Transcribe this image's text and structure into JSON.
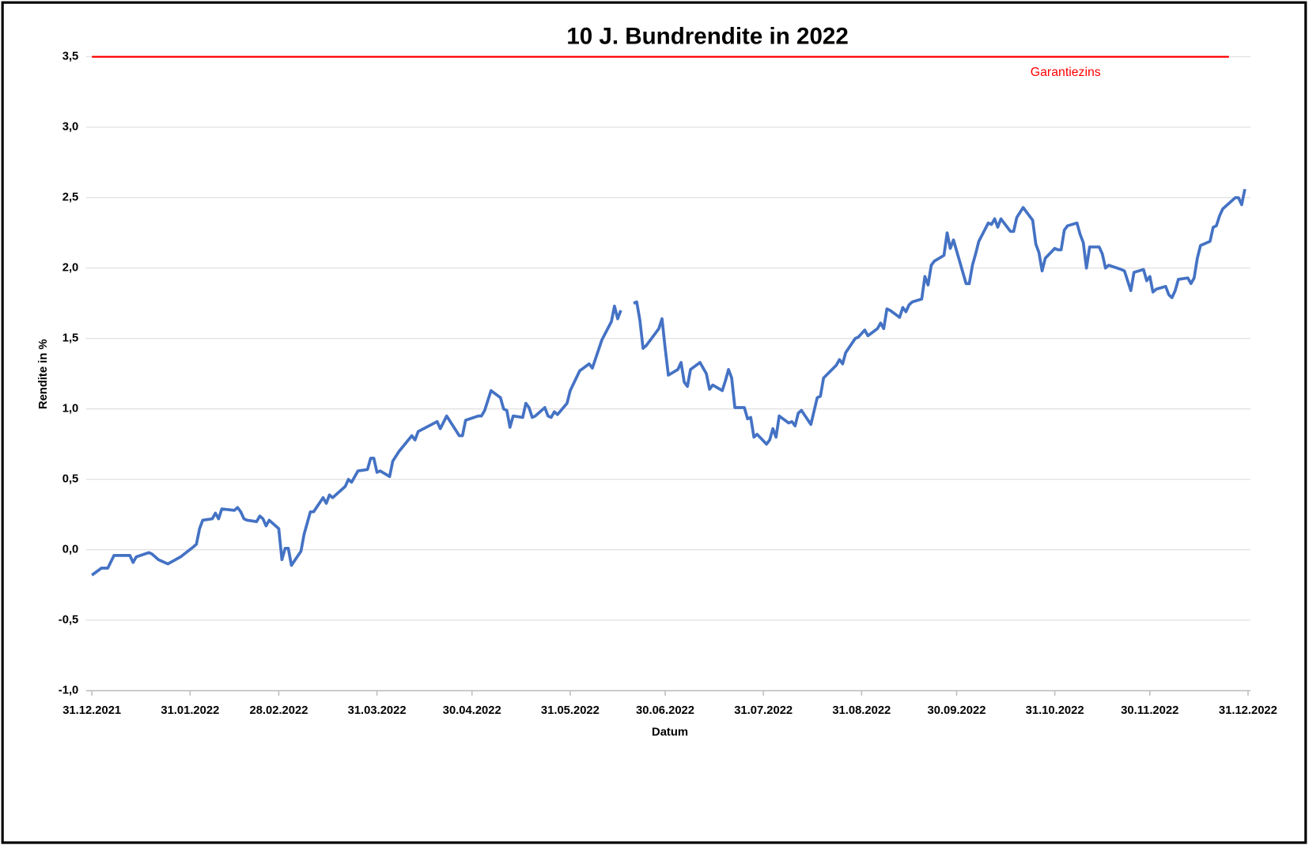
{
  "chart_data": {
    "type": "line",
    "title": "10 J. Bundrendite in 2022",
    "xlabel": "Datum",
    "ylabel": "Rendite  in %",
    "xlim": [
      "31.12.2021",
      "31.12.2022"
    ],
    "xticks": [
      "31.12.2021",
      "31.01.2022",
      "28.02.2022",
      "31.03.2022",
      "30.04.2022",
      "31.05.2022",
      "30.06.2022",
      "31.07.2022",
      "31.08.2022",
      "30.09.2022",
      "31.10.2022",
      "30.11.2022",
      "31.12.2022"
    ],
    "ylim": [
      -1.0,
      3.5
    ],
    "yticks": [
      {
        "value": -1.0,
        "label": "-1,0"
      },
      {
        "value": -0.5,
        "label": "-0,5"
      },
      {
        "value": 0,
        "label": "0,0"
      },
      {
        "value": 0.5,
        "label": "0,5"
      },
      {
        "value": 1.0,
        "label": "1,0"
      },
      {
        "value": 1.5,
        "label": "1,5"
      },
      {
        "value": 2.0,
        "label": "2,0"
      },
      {
        "value": 2.5,
        "label": "2,5"
      },
      {
        "value": 3.0,
        "label": "3,0"
      },
      {
        "value": 3.5,
        "label": "3,5"
      }
    ],
    "grid": true,
    "series": [
      {
        "color": "#4472c4",
        "x": [
          "31.12.2021",
          "03.01.2022",
          "05.01.2022",
          "07.01.2022",
          "12.01.2022",
          "13.01.2022",
          "14.01.2022",
          "18.01.2022",
          "19.01.2022",
          "21.01.2022",
          "24.01.2022",
          "28.01.2022",
          "01.02.2022",
          "02.02.2022",
          "03.02.2022",
          "04.02.2022",
          "07.02.2022",
          "08.02.2022",
          "09.02.2022",
          "10.02.2022",
          "14.02.2022",
          "15.02.2022",
          "16.02.2022",
          "17.02.2022",
          "18.02.2022",
          "21.02.2022",
          "22.02.2022",
          "23.02.2022",
          "24.02.2022",
          "25.02.2022",
          "28.02.2022",
          "01.03.2022",
          "02.03.2022",
          "03.03.2022",
          "04.03.2022",
          "07.03.2022",
          "08.03.2022",
          "10.03.2022",
          "11.03.2022",
          "14.03.2022",
          "15.03.2022",
          "16.03.2022",
          "17.03.2022",
          "21.03.2022",
          "22.03.2022",
          "23.03.2022",
          "25.03.2022",
          "28.03.2022",
          "29.03.2022",
          "30.03.2022",
          "31.03.2022",
          "01.04.2022",
          "04.04.2022",
          "05.04.2022",
          "07.04.2022",
          "11.04.2022",
          "12.04.2022",
          "13.04.2022",
          "19.04.2022",
          "20.04.2022",
          "22.04.2022",
          "26.04.2022",
          "27.04.2022",
          "28.04.2022",
          "02.05.2022",
          "03.05.2022",
          "04.05.2022",
          "06.05.2022",
          "09.05.2022",
          "10.05.2022",
          "11.05.2022",
          "12.05.2022",
          "13.05.2022",
          "16.05.2022",
          "17.05.2022",
          "18.05.2022",
          "19.05.2022",
          "20.05.2022",
          "23.05.2022",
          "24.05.2022",
          "25.05.2022",
          "26.05.2022",
          "27.05.2022",
          "30.05.2022",
          "31.05.2022",
          "03.06.2022",
          "06.06.2022",
          "07.06.2022",
          "10.06.2022",
          "13.06.2022",
          "14.06.2022",
          "15.06.2022",
          "16.06.2022",
          "17.06.2022",
          "20.06.2022",
          "21.06.2022",
          "22.06.2022",
          "23.06.2022",
          "24.06.2022",
          "28.06.2022",
          "29.06.2022",
          "30.06.2022",
          "01.07.2022",
          "04.07.2022",
          "05.07.2022",
          "06.07.2022",
          "07.07.2022",
          "08.07.2022",
          "11.07.2022",
          "12.07.2022",
          "13.07.2022",
          "14.07.2022",
          "15.07.2022",
          "18.07.2022",
          "19.07.2022",
          "20.07.2022",
          "21.07.2022",
          "22.07.2022",
          "25.07.2022",
          "26.07.2022",
          "27.07.2022",
          "28.07.2022",
          "29.07.2022",
          "01.08.2022",
          "02.08.2022",
          "03.08.2022",
          "04.08.2022",
          "05.08.2022",
          "08.08.2022",
          "09.08.2022",
          "10.08.2022",
          "11.08.2022",
          "12.08.2022",
          "15.08.2022",
          "17.08.2022",
          "18.08.2022",
          "19.08.2022",
          "23.08.2022",
          "24.08.2022",
          "25.08.2022",
          "26.08.2022",
          "29.08.2022",
          "30.08.2022",
          "01.09.2022",
          "02.09.2022",
          "05.09.2022",
          "06.09.2022",
          "07.09.2022",
          "08.09.2022",
          "09.09.2022",
          "12.09.2022",
          "13.09.2022",
          "14.09.2022",
          "15.09.2022",
          "16.09.2022",
          "19.09.2022",
          "20.09.2022",
          "21.09.2022",
          "22.09.2022",
          "23.09.2022",
          "26.09.2022",
          "27.09.2022",
          "28.09.2022",
          "29.09.2022",
          "03.10.2022",
          "04.10.2022",
          "05.10.2022",
          "06.10.2022",
          "07.10.2022",
          "10.10.2022",
          "11.10.2022",
          "12.10.2022",
          "13.10.2022",
          "14.10.2022",
          "17.10.2022",
          "18.10.2022",
          "19.10.2022",
          "21.10.2022",
          "24.10.2022",
          "25.10.2022",
          "26.10.2022",
          "27.10.2022",
          "28.10.2022",
          "31.10.2022",
          "01.11.2022",
          "02.11.2022",
          "03.11.2022",
          "04.11.2022",
          "07.11.2022",
          "08.11.2022",
          "09.11.2022",
          "10.11.2022",
          "11.11.2022",
          "14.11.2022",
          "15.11.2022",
          "16.11.2022",
          "17.11.2022",
          "21.11.2022",
          "22.11.2022",
          "23.11.2022",
          "24.11.2022",
          "25.11.2022",
          "28.11.2022",
          "29.11.2022",
          "30.11.2022",
          "01.12.2022",
          "02.12.2022",
          "05.12.2022",
          "06.12.2022",
          "07.12.2022",
          "08.12.2022",
          "09.12.2022",
          "12.12.2022",
          "13.12.2022",
          "14.12.2022",
          "15.12.2022",
          "16.12.2022",
          "19.12.2022",
          "20.12.2022",
          "21.12.2022",
          "22.12.2022",
          "23.12.2022",
          "27.12.2022",
          "28.12.2022",
          "29.12.2022",
          "30.12.2022"
        ],
        "values": [
          -0.18,
          -0.13,
          -0.13,
          -0.04,
          -0.04,
          -0.09,
          -0.05,
          -0.02,
          -0.03,
          -0.07,
          -0.1,
          -0.05,
          0.02,
          0.04,
          0.15,
          0.21,
          0.22,
          0.26,
          0.22,
          0.29,
          0.28,
          0.3,
          0.27,
          0.22,
          0.21,
          0.2,
          0.24,
          0.22,
          0.17,
          0.21,
          0.15,
          -0.07,
          0.01,
          0.01,
          -0.11,
          -0.01,
          0.11,
          0.27,
          0.27,
          0.37,
          0.33,
          0.39,
          0.37,
          0.45,
          0.5,
          0.48,
          0.56,
          0.57,
          0.65,
          0.65,
          0.55,
          0.56,
          0.52,
          0.63,
          0.7,
          0.81,
          0.78,
          0.84,
          0.91,
          0.86,
          0.95,
          0.81,
          0.81,
          0.92,
          0.95,
          0.95,
          0.99,
          1.13,
          1.08,
          1.0,
          0.99,
          0.87,
          0.95,
          0.94,
          1.04,
          1.01,
          0.94,
          0.95,
          1.01,
          0.95,
          0.94,
          0.98,
          0.96,
          1.04,
          1.13,
          1.27,
          1.32,
          1.29,
          1.49,
          1.62,
          1.73,
          1.64,
          1.7,
          null,
          1.75,
          1.76,
          1.63,
          1.43,
          1.45,
          1.57,
          1.64,
          1.43,
          1.24,
          1.28,
          1.33,
          1.19,
          1.16,
          1.28,
          1.33,
          1.29,
          1.25,
          1.14,
          1.17,
          1.13,
          1.2,
          1.28,
          1.22,
          1.01,
          1.01,
          0.93,
          0.94,
          0.8,
          0.82,
          0.75,
          0.78,
          0.86,
          0.8,
          0.95,
          0.9,
          0.91,
          0.88,
          0.97,
          0.99,
          0.89,
          1.08,
          1.09,
          1.22,
          1.31,
          1.35,
          1.32,
          1.4,
          1.5,
          1.51,
          1.56,
          1.52,
          1.57,
          1.61,
          1.57,
          1.71,
          1.7,
          1.65,
          1.72,
          1.69,
          1.74,
          1.76,
          1.78,
          1.94,
          1.88,
          2.02,
          2.05,
          2.09,
          2.25,
          2.14,
          2.2,
          1.89,
          1.89,
          2.02,
          2.1,
          2.19,
          2.32,
          2.31,
          2.35,
          2.29,
          2.35,
          2.26,
          2.26,
          2.36,
          2.43,
          2.34,
          2.17,
          2.11,
          1.98,
          2.07,
          2.14,
          2.13,
          2.13,
          2.27,
          2.3,
          2.32,
          2.24,
          2.18,
          2.0,
          2.15,
          2.15,
          2.1,
          2.0,
          2.02,
          1.99,
          1.98,
          1.91,
          1.84,
          1.97,
          1.99,
          1.91,
          1.94,
          1.83,
          1.85,
          1.87,
          1.81,
          1.79,
          1.84,
          1.92,
          1.93,
          1.89,
          1.93,
          2.07,
          2.16,
          2.19,
          2.29,
          2.3,
          2.37,
          2.42,
          2.5,
          2.5,
          2.45,
          2.56
        ]
      },
      {
        "name": "Garantiezins",
        "color": "#ff0000",
        "x": [
          "31.12.2021",
          "25.12.2022"
        ],
        "values": [
          3.5,
          3.5
        ]
      }
    ]
  }
}
